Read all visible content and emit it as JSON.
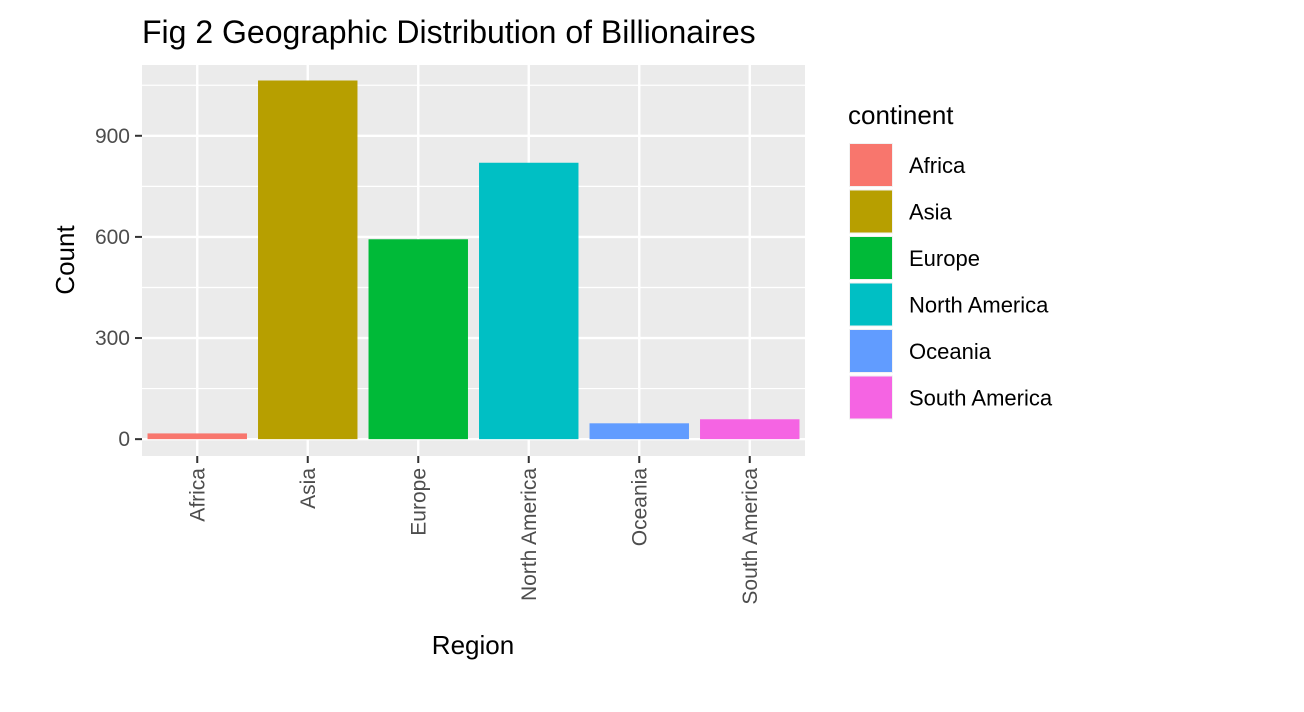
{
  "chart_data": {
    "type": "bar",
    "title": "Fig 2 Geographic Distribution of Billionaires",
    "xlabel": "Region",
    "ylabel": "Count",
    "categories": [
      "Africa",
      "Asia",
      "Europe",
      "North America",
      "Oceania",
      "South America"
    ],
    "values": [
      17,
      1064,
      593,
      820,
      47,
      59
    ],
    "ylim": [
      -50,
      1110
    ],
    "yticks": [
      "0",
      "300",
      "600",
      "900"
    ],
    "grid": true,
    "legend": {
      "title": "continent",
      "placement": "right",
      "items": [
        "Africa",
        "Asia",
        "Europe",
        "North America",
        "Oceania",
        "South America"
      ]
    },
    "colors": [
      "#F8766D",
      "#B79F00",
      "#00BA38",
      "#00BFC4",
      "#619CFF",
      "#F564E3"
    ],
    "panel_background": "#EBEBEB",
    "grid_color": "#FFFFFF"
  }
}
